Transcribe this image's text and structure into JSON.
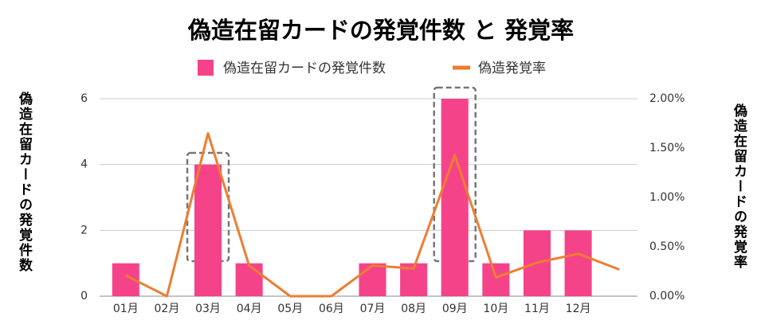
{
  "chart_data": {
    "type": "bar_line",
    "title": "偽造在留カードの発覚件数 と 発覚率",
    "y_label": "偽造在留カードの発覚件数",
    "y2_label": "偽造在留カードの発覚率",
    "categories": [
      "01月",
      "02月",
      "03月",
      "04月",
      "05月",
      "06月",
      "07月",
      "08月",
      "09月",
      "10月",
      "11月",
      "12月",
      null
    ],
    "series": [
      {
        "name": "偽造在留カードの発覚件数",
        "type": "bar",
        "color": "#f5438a",
        "values": [
          1,
          0,
          4,
          1,
          0,
          0,
          1,
          1,
          6,
          1,
          2,
          2,
          null
        ]
      },
      {
        "name": "偽造発覚率",
        "type": "line",
        "axis": "y2",
        "color": "#ed7d31",
        "values": [
          0.21,
          0,
          1.65,
          0.31,
          0,
          0,
          0.31,
          0.28,
          1.43,
          0.19,
          0.34,
          0.43,
          0.27
        ]
      }
    ],
    "ylim": [
      0,
      6
    ],
    "yticks": [
      0,
      2,
      4,
      6
    ],
    "y2lim": [
      0,
      2
    ],
    "y2ticks": [
      {
        "value": 0,
        "label": "0.00%"
      },
      {
        "value": 0.5,
        "label": "0.50%"
      },
      {
        "value": 1,
        "label": "1.00%"
      },
      {
        "value": 1.5,
        "label": "1.50%"
      },
      {
        "value": 2,
        "label": "2.00%"
      }
    ],
    "grid": true,
    "legend": "top"
  }
}
